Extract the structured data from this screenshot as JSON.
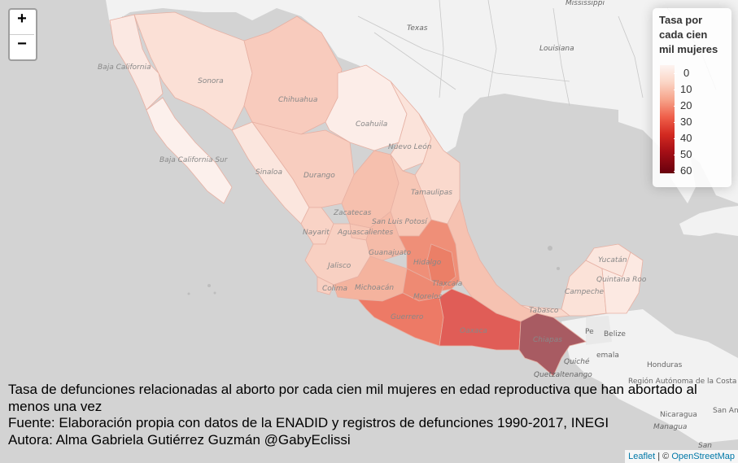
{
  "zoom": {
    "in_label": "+",
    "out_label": "−"
  },
  "legend": {
    "title_lines": [
      "Tasa por",
      "cada cien",
      "mil mujeres"
    ],
    "ticks": [
      "0",
      "10",
      "20",
      "30",
      "40",
      "50",
      "60"
    ],
    "colors": [
      "#fdf4f1",
      "#fbd5c5",
      "#f6a38a",
      "#ef5f4a",
      "#d32a21",
      "#a50f16",
      "#67000d"
    ]
  },
  "map_labels": {
    "states": [
      "Baja California",
      "Sonora",
      "Chihuahua",
      "Coahuila",
      "Nuevo León",
      "Baja California Sur",
      "Sinaloa",
      "Durango",
      "Tamaulipas",
      "Zacatecas",
      "San Luis Potosí",
      "Nayarit",
      "Aguascalientes",
      "Guanajuato",
      "Jalisco",
      "Hidalgo",
      "Tlaxcala",
      "Morelos",
      "Colima",
      "Michoacán",
      "Guerrero",
      "Oaxaca",
      "Chiapas",
      "Tabasco",
      "Campeche",
      "Yucatán",
      "Quintana Roo"
    ],
    "foreign": [
      "Mississippi",
      "Texas",
      "Louisiana",
      "Pe",
      "Belize",
      "Honduras",
      "Quiché",
      "emala",
      "Quetzaltenango",
      "Región Autónoma de la Costa",
      "Nicaragua",
      "San Ander"
    ],
    "cities": [
      "Managua",
      "San"
    ]
  },
  "caption": {
    "line1": "Tasa de defunciones relacionadas al aborto por cada cien mil mujeres en edad reproductiva que han abortado al menos una vez",
    "line2": "Fuente: Elaboración propia con datos de la ENADID y registros de defunciones 1990-2017, INEGI",
    "line3": "Autora: Alma Gabriela Gutiérrez Guzmán @GabyEclissi"
  },
  "attribution": {
    "leaflet": "Leaflet",
    "separator": " | © ",
    "osm": "OpenStreetMap"
  }
}
